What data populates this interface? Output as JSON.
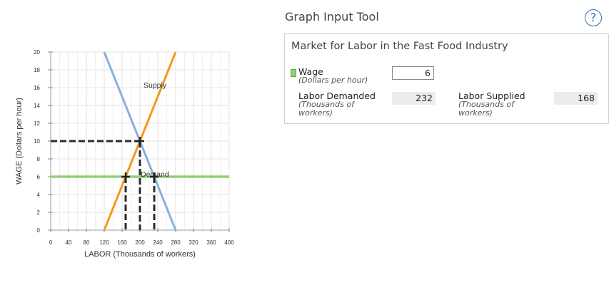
{
  "header": {
    "title": "Graph Input Tool",
    "help_label": "?"
  },
  "panel": {
    "title": "Market for Labor in the Fast Food Industry",
    "wage": {
      "label": "Wage",
      "unit": "(Dollars per hour)",
      "value": "6"
    },
    "labor_demanded": {
      "label": "Labor Demanded",
      "unit_line1": "(Thousands of",
      "unit_line2": "workers)",
      "value": "232"
    },
    "labor_supplied": {
      "label": "Labor Supplied",
      "unit_line1": "(Thousands of",
      "unit_line2": "workers)",
      "value": "168"
    }
  },
  "colors": {
    "supply": "#f39a1a",
    "demand": "#8ab1d8",
    "wage_line": "#8fd07a",
    "dashed": "#2b2b2b",
    "grid": "#e3e3e3"
  },
  "chart_data": {
    "type": "line",
    "xlabel": "LABOR (Thousands of workers)",
    "ylabel": "WAGE (Dollars per hour)",
    "xlim": [
      0,
      400
    ],
    "ylim": [
      0,
      20
    ],
    "x_ticks": [
      0,
      40,
      80,
      120,
      160,
      200,
      240,
      280,
      320,
      360,
      400
    ],
    "y_ticks": [
      0,
      2,
      4,
      6,
      8,
      10,
      12,
      14,
      16,
      18,
      20
    ],
    "grid": true,
    "series": [
      {
        "name": "Supply",
        "points": [
          [
            120,
            0
          ],
          [
            280,
            20
          ]
        ]
      },
      {
        "name": "Demand",
        "points": [
          [
            120,
            20
          ],
          [
            280,
            0
          ]
        ]
      }
    ],
    "wage_line": 6,
    "equilibrium": [
      200,
      10
    ],
    "quantity_supplied_at_wage": 168,
    "quantity_demanded_at_wage": 232
  }
}
